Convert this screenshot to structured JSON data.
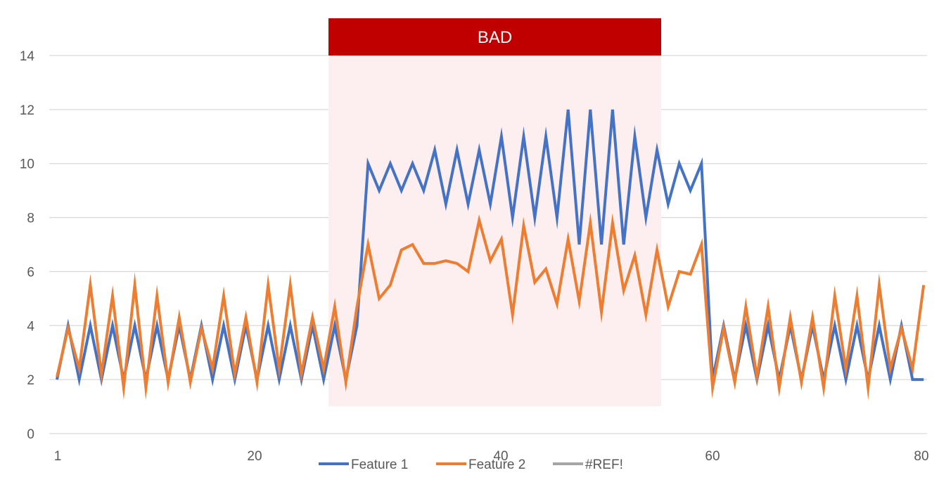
{
  "chart_data": {
    "type": "line",
    "title": "",
    "xlabel": "",
    "ylabel": "",
    "ylim": [
      0,
      14
    ],
    "y_ticks": [
      "0",
      "2",
      "4",
      "6",
      "8",
      "10",
      "12",
      "14"
    ],
    "x_ticks": [
      "1",
      "20",
      "40",
      "60",
      "80"
    ],
    "grid": "horizontal",
    "legend_position": "bottom",
    "highlight_region": {
      "label": "BAD",
      "x_from": 27,
      "x_to": 55,
      "band_color": "#c00000",
      "fill_color": "#fdeef0"
    },
    "series": [
      {
        "name": "Feature 1",
        "color": "#4472c4",
        "x": [
          1,
          2,
          3,
          4,
          5,
          6,
          7,
          8,
          9,
          10,
          11,
          12,
          13,
          14,
          15,
          16,
          17,
          18,
          19,
          20,
          21,
          22,
          23,
          24,
          25,
          26,
          27,
          28,
          29,
          30,
          31,
          32,
          33,
          34,
          35,
          36,
          37,
          38,
          39,
          40,
          41,
          42,
          43,
          44,
          45,
          46,
          47,
          48,
          49,
          50,
          51,
          52,
          53,
          54,
          55,
          56,
          57,
          58,
          59,
          60,
          61,
          62,
          63,
          64,
          65,
          66,
          67,
          68,
          69,
          70,
          71,
          72,
          73,
          74,
          75,
          76,
          77,
          78,
          79
        ],
        "values": [
          2,
          4,
          2,
          4,
          2,
          4,
          2,
          4,
          2,
          4,
          2,
          4,
          2,
          4,
          2,
          4,
          2,
          4,
          2,
          4,
          2,
          4,
          2,
          4,
          2,
          4,
          2,
          4,
          10,
          9,
          10,
          9,
          10,
          9,
          10.5,
          8.5,
          10.5,
          8.5,
          10.5,
          8.5,
          11,
          8,
          11,
          8,
          11,
          8,
          12,
          7,
          12,
          7,
          12,
          7,
          11,
          8,
          10.5,
          8.5,
          10,
          9,
          10,
          2,
          4,
          2,
          4,
          2,
          4,
          2,
          4,
          2,
          4,
          2,
          4,
          2,
          4,
          2,
          4,
          2,
          4,
          2,
          2
        ]
      },
      {
        "name": "Feature 2",
        "color": "#ed7d31",
        "x": [
          1,
          2,
          3,
          4,
          5,
          6,
          7,
          8,
          9,
          10,
          11,
          12,
          13,
          14,
          15,
          16,
          17,
          18,
          19,
          20,
          21,
          22,
          23,
          24,
          25,
          26,
          27,
          28,
          29,
          30,
          31,
          32,
          33,
          34,
          35,
          36,
          37,
          38,
          39,
          40,
          41,
          42,
          43,
          44,
          45,
          46,
          47,
          48,
          49,
          50,
          51,
          52,
          53,
          54,
          55,
          56,
          57,
          58,
          59,
          60,
          61,
          62,
          63,
          64,
          65,
          66,
          67,
          68,
          69,
          70,
          71,
          72,
          73,
          74,
          75,
          76,
          77,
          78,
          79
        ],
        "values": [
          2.1,
          3.9,
          2.4,
          5.5,
          2.2,
          5.1,
          1.7,
          5.5,
          1.7,
          5.1,
          1.9,
          4.3,
          1.9,
          3.9,
          2.4,
          5.1,
          2.2,
          4.3,
          1.9,
          5.5,
          2.4,
          5.5,
          2.2,
          4.3,
          2.4,
          4.7,
          1.9,
          4.7,
          7,
          5,
          5.5,
          6.8,
          7,
          6.3,
          6.3,
          6.4,
          6.3,
          6,
          7.9,
          6.4,
          7.2,
          4.4,
          7.7,
          5.6,
          6.1,
          4.8,
          7.2,
          4.9,
          7.8,
          4.5,
          7.8,
          5.3,
          6.6,
          4.4,
          6.8,
          4.7,
          6,
          5.9,
          7,
          1.7,
          3.9,
          1.9,
          4.7,
          2.1,
          4.7,
          1.7,
          4.3,
          1.9,
          4.3,
          1.7,
          5.1,
          2.4,
          5.1,
          1.7,
          5.5,
          2.4,
          3.9,
          2.4,
          5.5
        ]
      },
      {
        "name": "#REF!",
        "color": "#a5a5a5",
        "values": []
      }
    ]
  }
}
